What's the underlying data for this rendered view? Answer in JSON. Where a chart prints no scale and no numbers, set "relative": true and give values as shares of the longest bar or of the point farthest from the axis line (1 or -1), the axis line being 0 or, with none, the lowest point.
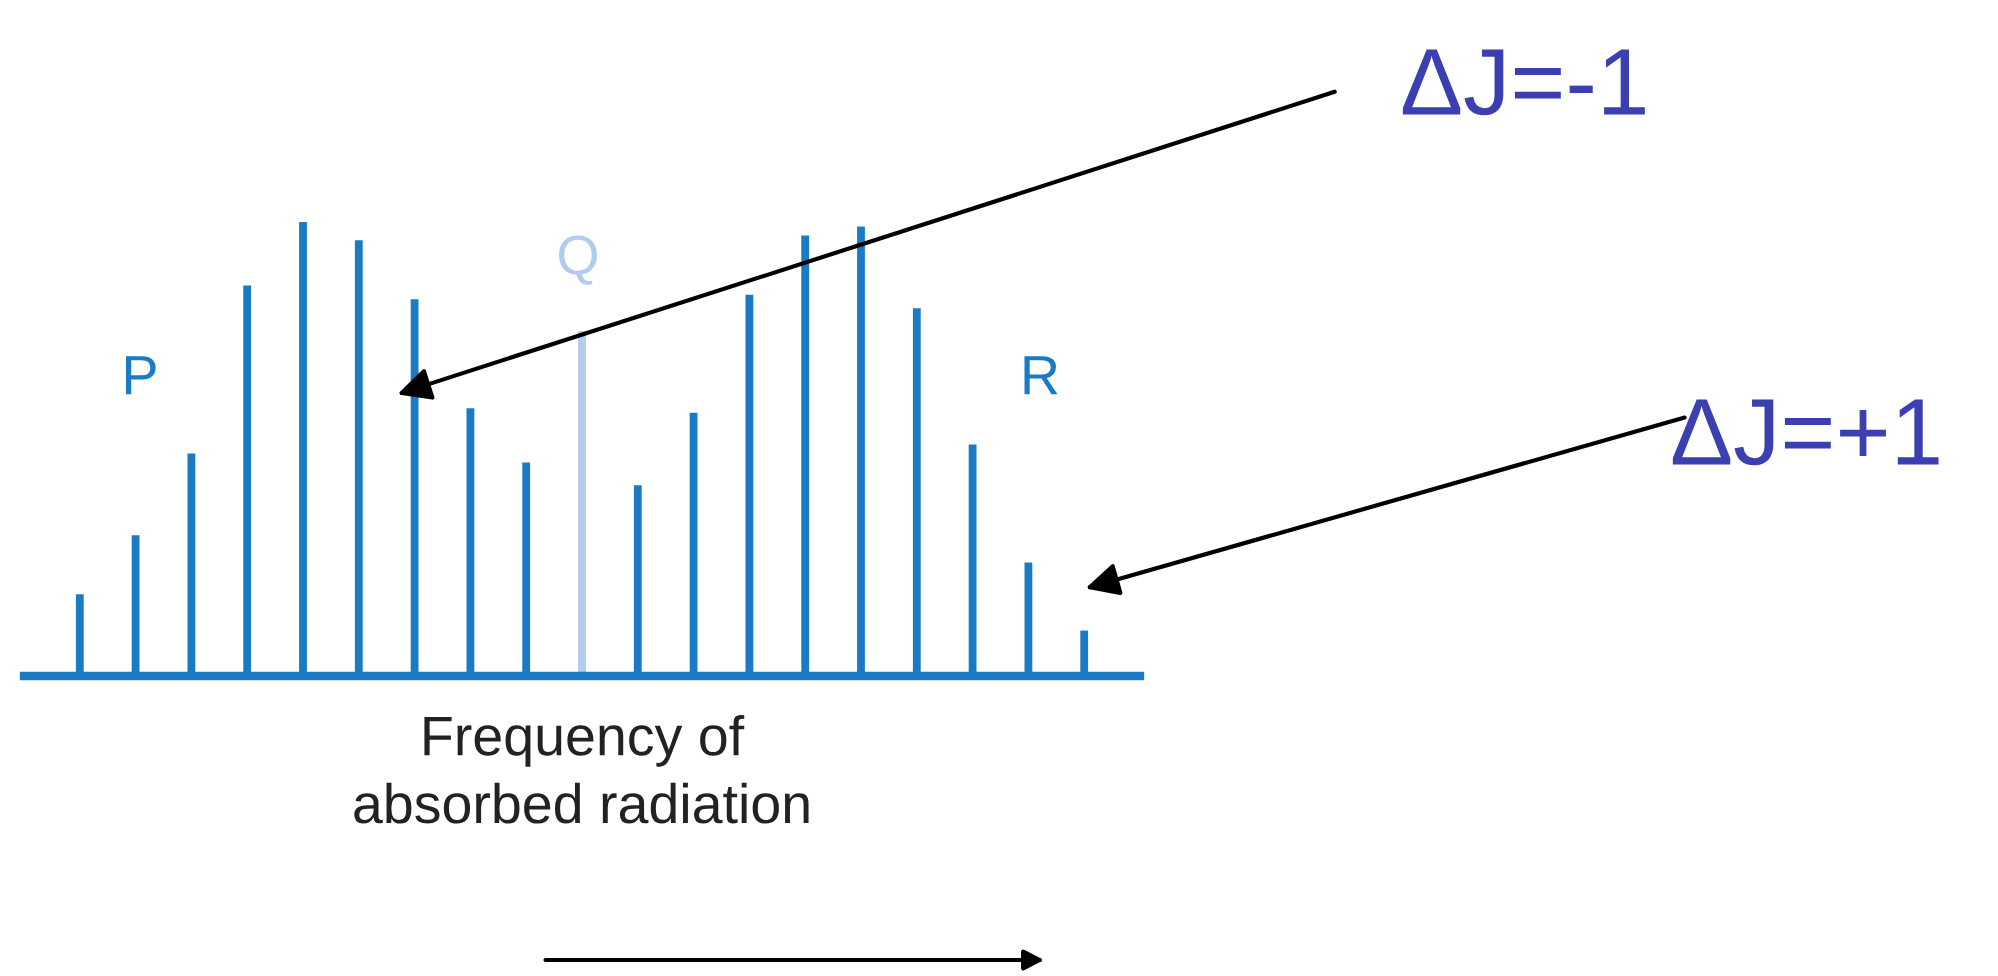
{
  "chart_data": {
    "type": "bar",
    "relative": true,
    "xlabel": "Frequency of\nabsorbed radiation",
    "categories": [
      null,
      null,
      null,
      null,
      null,
      null,
      null,
      null,
      null,
      null,
      null,
      null,
      null,
      null,
      null,
      null,
      null,
      null,
      null
    ],
    "values": [
      0.18,
      0.31,
      0.49,
      0.86,
      1.0,
      0.96,
      0.83,
      0.59,
      0.47,
      0.76,
      0.42,
      0.58,
      0.84,
      0.97,
      0.99,
      0.81,
      0.51,
      0.25,
      0.1
    ],
    "colors": [
      "#1a7bc4",
      "#1a7bc4",
      "#1a7bc4",
      "#1a7bc4",
      "#1a7bc4",
      "#1a7bc4",
      "#1a7bc4",
      "#1a7bc4",
      "#1a7bc4",
      "#b3cbec",
      "#1a7bc4",
      "#1a7bc4",
      "#1a7bc4",
      "#1a7bc4",
      "#1a7bc4",
      "#1a7bc4",
      "#1a7bc4",
      "#1a7bc4",
      "#1a7bc4"
    ],
    "annotations": [
      "P",
      "Q",
      "R",
      "ΔJ=-1",
      "ΔJ=+1"
    ],
    "tick_labels": false,
    "legend": false,
    "grid": false
  }
}
